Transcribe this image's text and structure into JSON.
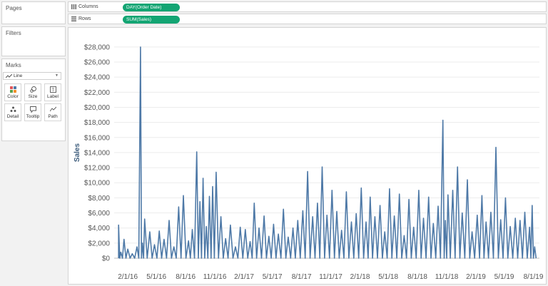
{
  "panels": {
    "pages_title": "Pages",
    "filters_title": "Filters",
    "marks_title": "Marks",
    "mark_type": "Line",
    "mark_buttons": [
      {
        "label": "Color"
      },
      {
        "label": "Size"
      },
      {
        "label": "Label"
      },
      {
        "label": "Detail"
      },
      {
        "label": "Tooltip"
      },
      {
        "label": "Path"
      }
    ]
  },
  "shelves": {
    "columns_label": "Columns",
    "columns_pill": "DAY(Order Date)",
    "rows_label": "Rows",
    "rows_pill": "SUM(Sales)"
  },
  "colors": {
    "pill": "#13a573",
    "line": "#4e79a7",
    "grid": "#ececec"
  },
  "chart_data": {
    "type": "line",
    "ylabel": "Sales",
    "xlabel": "",
    "y_ticks": [
      "$0",
      "$2,000",
      "$4,000",
      "$6,000",
      "$8,000",
      "$10,000",
      "$12,000",
      "$14,000",
      "$16,000",
      "$18,000",
      "$20,000",
      "$22,000",
      "$24,000",
      "$26,000",
      "$28,000"
    ],
    "ylim": [
      0,
      29500
    ],
    "x_ticks": [
      "2/1/16",
      "5/1/16",
      "8/1/16",
      "11/1/16",
      "2/1/17",
      "5/1/17",
      "8/1/17",
      "11/1/17",
      "2/1/18",
      "5/1/18",
      "8/1/18",
      "11/1/18",
      "2/1/19",
      "5/1/19",
      "8/1/19"
    ],
    "x_tick_dates": [
      "2016-02-01",
      "2016-05-01",
      "2016-08-01",
      "2016-11-01",
      "2017-02-01",
      "2017-05-01",
      "2017-08-01",
      "2017-11-01",
      "2018-02-01",
      "2018-05-01",
      "2018-08-01",
      "2018-11-01",
      "2019-02-01",
      "2019-05-01",
      "2019-08-01"
    ],
    "xlim": [
      "2015-12-20",
      "2019-08-20"
    ],
    "gridlines": "horizontal",
    "series": [
      {
        "x": [
          "2016-01-03",
          "2016-01-10",
          "2016-01-20",
          "2016-02-01",
          "2016-02-15",
          "2016-03-01",
          "2016-03-12",
          "2016-03-18",
          "2016-03-25",
          "2016-04-10",
          "2016-04-25",
          "2016-05-10",
          "2016-05-25",
          "2016-06-10",
          "2016-06-25",
          "2016-07-10",
          "2016-07-25",
          "2016-08-10",
          "2016-08-22",
          "2016-09-05",
          "2016-09-15",
          "2016-09-25",
          "2016-10-05",
          "2016-10-15",
          "2016-10-25",
          "2016-11-05",
          "2016-11-20",
          "2016-12-05",
          "2016-12-20",
          "2017-01-05",
          "2017-01-20",
          "2017-02-05",
          "2017-02-20",
          "2017-03-05",
          "2017-03-20",
          "2017-04-05",
          "2017-04-20",
          "2017-05-05",
          "2017-05-20",
          "2017-06-05",
          "2017-06-20",
          "2017-07-05",
          "2017-07-20",
          "2017-08-05",
          "2017-08-20",
          "2017-09-05",
          "2017-09-20",
          "2017-10-05",
          "2017-10-20",
          "2017-11-05",
          "2017-11-20",
          "2017-12-05",
          "2017-12-20",
          "2018-01-05",
          "2018-01-20",
          "2018-02-05",
          "2018-02-20",
          "2018-03-05",
          "2018-03-20",
          "2018-04-05",
          "2018-04-20",
          "2018-05-05",
          "2018-05-20",
          "2018-06-05",
          "2018-06-20",
          "2018-07-05",
          "2018-07-20",
          "2018-08-05",
          "2018-08-20",
          "2018-09-05",
          "2018-09-20",
          "2018-10-05",
          "2018-10-20",
          "2018-10-28",
          "2018-11-05",
          "2018-11-20",
          "2018-12-05",
          "2018-12-20",
          "2019-01-05",
          "2019-01-20",
          "2019-02-05",
          "2019-02-20",
          "2019-03-05",
          "2019-03-20",
          "2019-04-05",
          "2019-04-20",
          "2019-05-05",
          "2019-05-20",
          "2019-06-05",
          "2019-06-20",
          "2019-07-05",
          "2019-07-20",
          "2019-07-28",
          "2019-08-05"
        ],
        "y": [
          4400,
          800,
          2500,
          1200,
          600,
          1500,
          28000,
          2000,
          5200,
          3500,
          1800,
          3600,
          2500,
          5000,
          1500,
          6800,
          8300,
          2300,
          3800,
          14100,
          7500,
          10600,
          4200,
          8200,
          9500,
          11400,
          5500,
          2600,
          4400,
          1500,
          4100,
          3800,
          2200,
          7300,
          4000,
          5600,
          2900,
          4500,
          3200,
          6500,
          2800,
          4000,
          5000,
          6300,
          11500,
          5500,
          7300,
          12100,
          5700,
          9000,
          6200,
          3700,
          8800,
          4800,
          5900,
          9300,
          4800,
          8100,
          5500,
          7000,
          3500,
          9200,
          5600,
          8500,
          3000,
          7800,
          4100,
          9000,
          5300,
          8100,
          4600,
          6900,
          18300,
          5000,
          8400,
          9000,
          12100,
          6000,
          10400,
          3500,
          5700,
          8300,
          4800,
          6100,
          14700,
          5100,
          8000,
          4200,
          5300,
          5000,
          6100,
          4100,
          7000,
          1500
        ]
      }
    ]
  }
}
